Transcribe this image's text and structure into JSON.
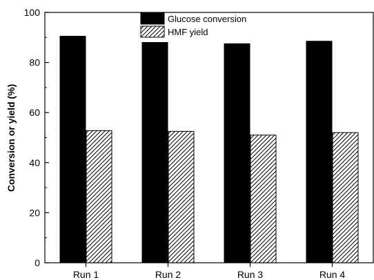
{
  "chart_data": {
    "type": "bar",
    "categories": [
      "Run 1",
      "Run 2",
      "Run 3",
      "Run 4"
    ],
    "series": [
      {
        "name": "Glucose conversion",
        "values": [
          90.5,
          88.0,
          87.5,
          88.5
        ],
        "fill": "#000000",
        "pattern": "solid"
      },
      {
        "name": "HMF yield",
        "values": [
          52.8,
          52.5,
          51.0,
          52.0
        ],
        "fill": "#ffffff",
        "pattern": "diagonal-hatch"
      }
    ],
    "title": "",
    "xlabel": "",
    "ylabel": "Conversion or yield (%)",
    "ylim": [
      0,
      100
    ],
    "yticks": [
      "0",
      "20",
      "40",
      "60",
      "80",
      "100"
    ],
    "grid": false,
    "legend_position": "top-center"
  }
}
